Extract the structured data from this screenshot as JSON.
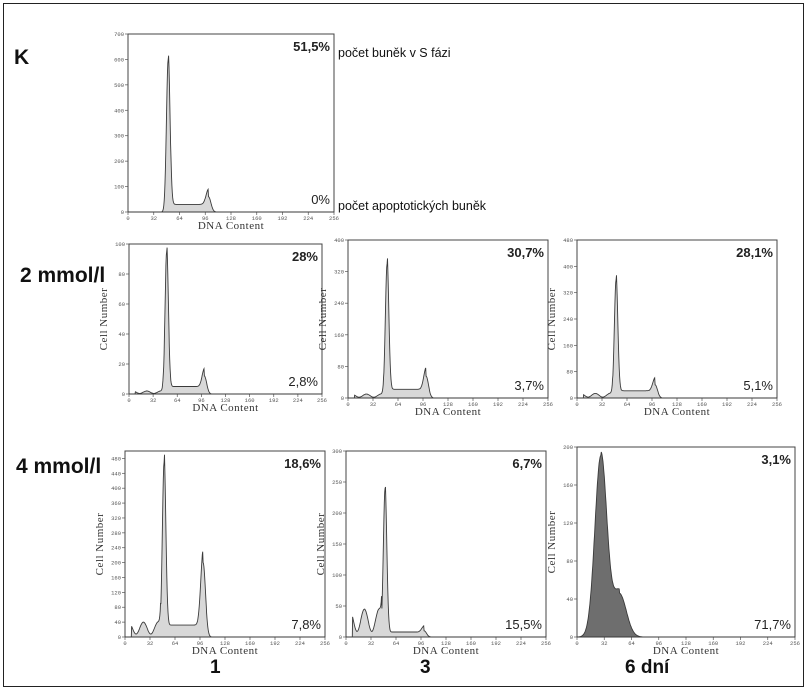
{
  "labels": {
    "rows": [
      "K",
      "2 mmol/l",
      "4 mmol/l"
    ],
    "columns": [
      "1",
      "3",
      "6 dní"
    ],
    "s_phase_note": "počet buněk v S fázi",
    "apoptotic_note": "počet apoptotických buněk"
  },
  "axis": {
    "xlabel": "DNA Content",
    "ylabel": "Cell Number",
    "xticks": [
      "0",
      "32",
      "64",
      "96",
      "128",
      "160",
      "192",
      "224",
      "256"
    ]
  },
  "colors": {
    "ink": "#3a3a3a",
    "panel_border": "#444444",
    "fill_light": "#b8b8b8",
    "fill_dark": "#555555"
  },
  "chart_data": [
    {
      "type": "area",
      "row": "K",
      "column": "",
      "s_phase": "51,5%",
      "apoptotic": "0%",
      "ylim": [
        0,
        700
      ],
      "yticks": [
        "0",
        "100",
        "200",
        "300",
        "400",
        "500",
        "600",
        "700"
      ],
      "xlabel": "DNA Content",
      "ylabel": "",
      "g1_peak": {
        "x": 50,
        "height": 600
      },
      "g2_peak": {
        "x": 100,
        "height": 60
      },
      "s_level": 30,
      "apoptotic_level": 0,
      "dark_fill": false
    },
    {
      "type": "area",
      "row": "2 mmol/l",
      "column": "1",
      "s_phase": "28%",
      "apoptotic": "2,8%",
      "ylim": [
        0,
        100
      ],
      "yticks": [
        "0",
        "20",
        "40",
        "60",
        "80",
        "100"
      ],
      "xlabel": "DNA Content",
      "ylabel": "Cell Number",
      "g1_peak": {
        "x": 50,
        "height": 95
      },
      "g2_peak": {
        "x": 100,
        "height": 12
      },
      "s_level": 5,
      "apoptotic_level": 2,
      "dark_fill": false
    },
    {
      "type": "area",
      "row": "2 mmol/l",
      "column": "3",
      "s_phase": "30,7%",
      "apoptotic": "3,7%",
      "ylim": [
        0,
        400
      ],
      "yticks": [
        "0",
        "80",
        "160",
        "240",
        "320",
        "400"
      ],
      "xlabel": "DNA Content",
      "ylabel": "Cell Number",
      "g1_peak": {
        "x": 50,
        "height": 340
      },
      "g2_peak": {
        "x": 100,
        "height": 55
      },
      "s_level": 22,
      "apoptotic_level": 10,
      "dark_fill": false
    },
    {
      "type": "area",
      "row": "2 mmol/l",
      "column": "6 dní",
      "s_phase": "28,1%",
      "apoptotic": "5,1%",
      "ylim": [
        0,
        480
      ],
      "yticks": [
        "0",
        "80",
        "160",
        "240",
        "320",
        "400",
        "480"
      ],
      "xlabel": "DNA Content",
      "ylabel": "Cell Number",
      "g1_peak": {
        "x": 50,
        "height": 360
      },
      "g2_peak": {
        "x": 100,
        "height": 40
      },
      "s_level": 22,
      "apoptotic_level": 14,
      "dark_fill": false
    },
    {
      "type": "area",
      "row": "4 mmol/l",
      "column": "1",
      "s_phase": "18,6%",
      "apoptotic": "7,8%",
      "ylim": [
        0,
        500
      ],
      "yticks": [
        "0",
        "40",
        "80",
        "120",
        "160",
        "200",
        "240",
        "280",
        "320",
        "360",
        "400",
        "440",
        "480"
      ],
      "xlabel": "DNA Content",
      "ylabel": "Cell Number",
      "g1_peak": {
        "x": 50,
        "height": 470
      },
      "g2_peak": {
        "x": 100,
        "height": 200
      },
      "s_level": 32,
      "apoptotic_level": 40,
      "dark_fill": false
    },
    {
      "type": "area",
      "row": "4 mmol/l",
      "column": "3",
      "s_phase": "6,7%",
      "apoptotic": "15,5%",
      "ylim": [
        0,
        300
      ],
      "yticks": [
        "0",
        "50",
        "100",
        "150",
        "200",
        "250",
        "300"
      ],
      "xlabel": "DNA Content",
      "ylabel": "Cell Number",
      "g1_peak": {
        "x": 50,
        "height": 240
      },
      "g2_peak": {
        "x": 100,
        "height": 10
      },
      "s_level": 8,
      "apoptotic_level": 45,
      "dark_fill": false
    },
    {
      "type": "area",
      "row": "4 mmol/l",
      "column": "6 dní",
      "s_phase": "3,1%",
      "apoptotic": "71,7%",
      "ylim": [
        0,
        200
      ],
      "yticks": [
        "0",
        "40",
        "80",
        "120",
        "160",
        "200"
      ],
      "xlabel": "DNA Content",
      "ylabel": "Cell Number",
      "g1_peak": {
        "x": 28,
        "height": 190
      },
      "g2_peak": {
        "x": 50,
        "height": 45
      },
      "s_level": 4,
      "apoptotic_level": 0,
      "dark_fill": true
    }
  ]
}
